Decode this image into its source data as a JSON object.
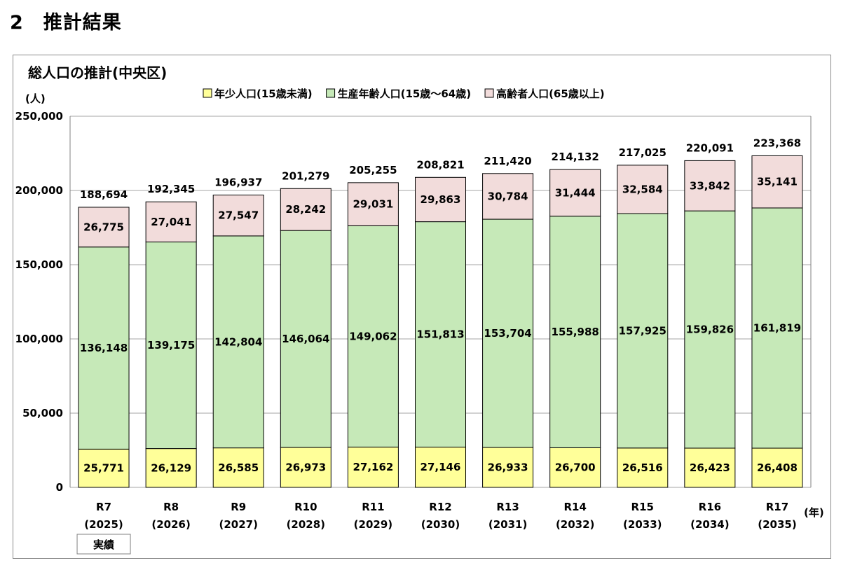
{
  "heading": "2　推計結果",
  "chart_data": {
    "type": "bar",
    "stacked": true,
    "title": "総人口の推計(中央区)",
    "ylabel": "(人)",
    "xunit": "(年)",
    "ylim": [
      0,
      250000
    ],
    "yticks": [
      "0",
      "50,000",
      "100,000",
      "150,000",
      "200,000",
      "250,000"
    ],
    "grid": true,
    "legend_position": "top",
    "categories": [
      {
        "label": "R7",
        "year": "(2025)"
      },
      {
        "label": "R8",
        "year": "(2026)"
      },
      {
        "label": "R9",
        "year": "(2027)"
      },
      {
        "label": "R10",
        "year": "(2028)"
      },
      {
        "label": "R11",
        "year": "(2029)"
      },
      {
        "label": "R12",
        "year": "(2030)"
      },
      {
        "label": "R13",
        "year": "(2031)"
      },
      {
        "label": "R14",
        "year": "(2032)"
      },
      {
        "label": "R15",
        "year": "(2033)"
      },
      {
        "label": "R16",
        "year": "(2034)"
      },
      {
        "label": "R17",
        "year": "(2035)"
      }
    ],
    "series": [
      {
        "name": "年少人口(15歳未満)",
        "color": "#ffff99",
        "values": [
          25771,
          26129,
          26585,
          26973,
          27162,
          27146,
          26933,
          26700,
          26516,
          26423,
          26408
        ],
        "labels": [
          "25,771",
          "26,129",
          "26,585",
          "26,973",
          "27,162",
          "27,146",
          "26,933",
          "26,700",
          "26,516",
          "26,423",
          "26,408"
        ]
      },
      {
        "name": "生産年齢人口(15歳〜64歳)",
        "color": "#c6e9b8",
        "values": [
          136148,
          139175,
          142804,
          146064,
          149062,
          151813,
          153704,
          155988,
          157925,
          159826,
          161819
        ],
        "labels": [
          "136,148",
          "139,175",
          "142,804",
          "146,064",
          "149,062",
          "151,813",
          "153,704",
          "155,988",
          "157,925",
          "159,826",
          "161,819"
        ]
      },
      {
        "name": "高齢者人口(65歳以上)",
        "color": "#f2dcdb",
        "values": [
          26775,
          27041,
          27547,
          28242,
          29031,
          29863,
          30784,
          31444,
          32584,
          33842,
          35141
        ],
        "labels": [
          "26,775",
          "27,041",
          "27,547",
          "28,242",
          "29,031",
          "29,863",
          "30,784",
          "31,444",
          "32,584",
          "33,842",
          "35,141"
        ]
      }
    ],
    "totals": [
      188694,
      192345,
      196937,
      201279,
      205255,
      208821,
      211420,
      214132,
      217025,
      220091,
      223368
    ],
    "total_labels": [
      "188,694",
      "192,345",
      "196,937",
      "201,279",
      "205,255",
      "208,821",
      "211,420",
      "214,132",
      "217,025",
      "220,091",
      "223,368"
    ],
    "annotation": "実績"
  }
}
